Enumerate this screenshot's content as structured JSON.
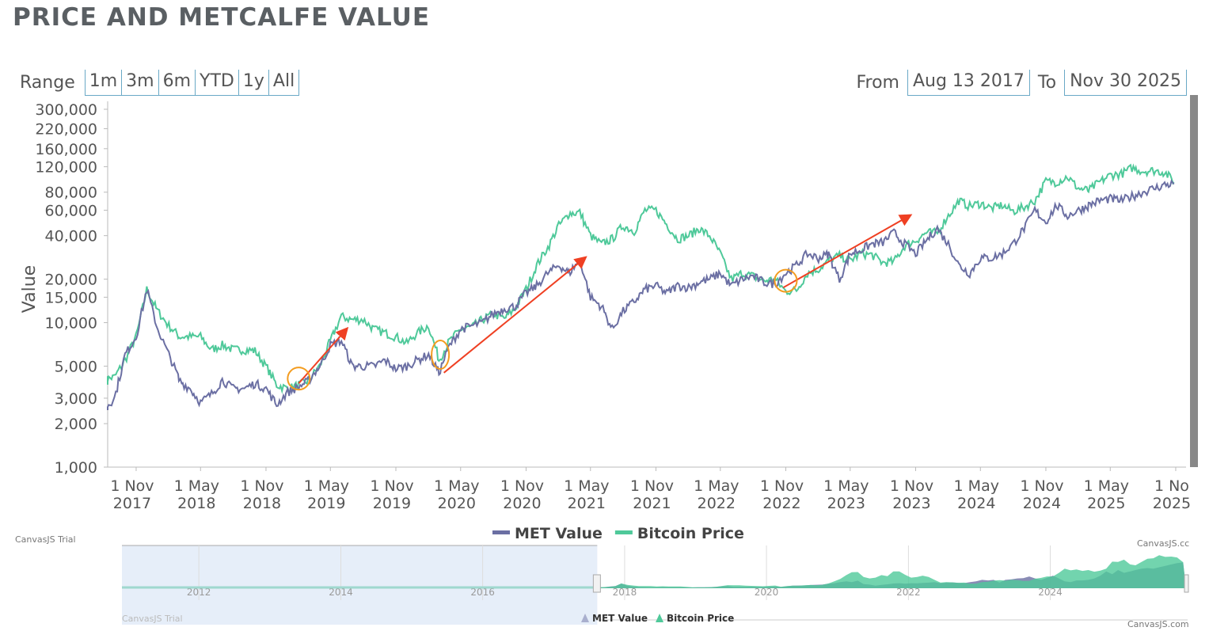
{
  "title": "PRICE AND METCALFE VALUE",
  "range": {
    "label": "Range",
    "buttons": [
      "1m",
      "3m",
      "6m",
      "YTD",
      "1y",
      "All"
    ]
  },
  "dates": {
    "from_label": "From",
    "from": "Aug 13 2017",
    "to_label": "To",
    "to": "Nov 30 2025"
  },
  "watermarks": {
    "left": "CanvasJS Trial",
    "nav_left": "CanvasJS Trial",
    "nav_right_top": "CanvasJS.cc",
    "nav_right_bottom": "CanvasJS.com"
  },
  "colors": {
    "met": "#6b6fa3",
    "btc": "#4fc99a",
    "arrow": "#ef4023",
    "circle": "#f39c1f",
    "navigator_shade": "#e6eef9"
  },
  "chart_data": {
    "type": "line",
    "ylabel": "Value",
    "y_scale": "log",
    "ylim": [
      1000,
      300000
    ],
    "y_ticks": [
      1000,
      2000,
      3000,
      5000,
      10000,
      15000,
      20000,
      40000,
      60000,
      80000,
      120000,
      160000,
      220000,
      300000
    ],
    "y_tick_labels": [
      "1,000",
      "2,000",
      "3,000",
      "5,000",
      "10,000",
      "15,000",
      "20,000",
      "40,000",
      "60,000",
      "80,000",
      "120,000",
      "160,000",
      "220,000",
      "300,000"
    ],
    "xlim": [
      "2017-08-13",
      "2025-11-30"
    ],
    "x_ticks": [
      "2017-11-01",
      "2018-05-01",
      "2018-11-01",
      "2019-05-01",
      "2019-11-01",
      "2020-05-01",
      "2020-11-01",
      "2021-05-01",
      "2021-11-01",
      "2022-05-01",
      "2022-11-01",
      "2023-05-01",
      "2023-11-01",
      "2024-05-01",
      "2024-11-01",
      "2025-05-01",
      "2025-11-01"
    ],
    "x_tick_labels": [
      [
        "1 Nov",
        "2017"
      ],
      [
        "1 May",
        "2018"
      ],
      [
        "1 Nov",
        "2018"
      ],
      [
        "1 May",
        "2019"
      ],
      [
        "1 Nov",
        "2019"
      ],
      [
        "1 May",
        "2020"
      ],
      [
        "1 Nov",
        "2020"
      ],
      [
        "1 May",
        "2021"
      ],
      [
        "1 Nov",
        "2021"
      ],
      [
        "1 May",
        "2022"
      ],
      [
        "1 Nov",
        "2022"
      ],
      [
        "1 May",
        "2023"
      ],
      [
        "1 Nov",
        "2023"
      ],
      [
        "1 May",
        "2024"
      ],
      [
        "1 Nov",
        "2024"
      ],
      [
        "1 May",
        "2025"
      ],
      [
        "1 No",
        "2025"
      ]
    ],
    "grid": false,
    "legend": "bottom",
    "start_month": "2017-08",
    "series": [
      {
        "name": "MET Value",
        "color": "#6b6fa3",
        "values": [
          2500,
          3000,
          6000,
          8000,
          17000,
          9000,
          6000,
          4000,
          3500,
          2800,
          3200,
          4000,
          3500,
          3500,
          3800,
          3500,
          2700,
          3300,
          3600,
          4000,
          5000,
          7000,
          7500,
          5000,
          5000,
          5000,
          5500,
          4800,
          5000,
          5500,
          6000,
          4500,
          7000,
          9000,
          9500,
          10000,
          11500,
          12500,
          13000,
          16000,
          18000,
          22000,
          25000,
          22000,
          27000,
          15000,
          13000,
          9000,
          12000,
          14000,
          17000,
          18000,
          16000,
          18000,
          17500,
          19000,
          20000,
          22000,
          18000,
          20000,
          21000,
          19000,
          18500,
          22000,
          25000,
          30000,
          28000,
          30000,
          20000,
          30000,
          32000,
          35000,
          36000,
          42000,
          35000,
          30000,
          37000,
          45000,
          35000,
          25000,
          22000,
          28000,
          28000,
          30000,
          35000,
          45000,
          60000,
          50000,
          65000,
          55000,
          60000,
          65000,
          70000,
          72000,
          70000,
          75000,
          80000,
          85000,
          90000,
          92000
        ]
      },
      {
        "name": "Bitcoin Price",
        "color": "#4fc99a",
        "values": [
          4000,
          4200,
          5500,
          8000,
          17000,
          12000,
          9500,
          8000,
          8000,
          8000,
          6500,
          7000,
          6500,
          6500,
          6400,
          5000,
          3700,
          3500,
          3700,
          4000,
          5000,
          7500,
          11000,
          10500,
          10500,
          9000,
          8500,
          8000,
          7200,
          8500,
          9500,
          5500,
          7500,
          9000,
          9300,
          10500,
          11500,
          10700,
          12500,
          17000,
          25000,
          33000,
          47000,
          57000,
          58000,
          40000,
          35000,
          38000,
          47000,
          43000,
          60000,
          60000,
          48000,
          38000,
          40000,
          45000,
          40000,
          30000,
          20000,
          22000,
          21000,
          19500,
          20000,
          16500,
          16800,
          22000,
          23500,
          27000,
          29000,
          27000,
          30000,
          29500,
          26000,
          26500,
          34000,
          37000,
          42000,
          42000,
          55000,
          70000,
          64000,
          67000,
          62000,
          65000,
          59000,
          63000,
          70000,
          95000,
          94000,
          102000,
          85000,
          82000,
          94000,
          105000,
          107000,
          118000,
          112000,
          113000,
          110000,
          93000
        ]
      }
    ],
    "annotations": {
      "arrows": [
        {
          "from": [
            "2019-02-01",
            3800
          ],
          "to": [
            "2019-06-15",
            9000
          ]
        },
        {
          "from": [
            "2020-03-15",
            4500
          ],
          "to": [
            "2021-04-15",
            28000
          ]
        },
        {
          "from": [
            "2022-10-25",
            17500
          ],
          "to": [
            "2023-10-15",
            55000
          ]
        }
      ],
      "circles": [
        {
          "at": [
            "2019-02-01",
            4100
          ]
        },
        {
          "at": [
            "2020-03-05",
            6000
          ]
        },
        {
          "at": [
            "2022-11-01",
            19500
          ]
        }
      ]
    },
    "navigator": {
      "x_tick_labels": [
        "2012",
        "2014",
        "2016",
        "2018",
        "2020",
        "2022",
        "2024"
      ],
      "legend": [
        "MET Value",
        "Bitcoin Price"
      ]
    }
  }
}
